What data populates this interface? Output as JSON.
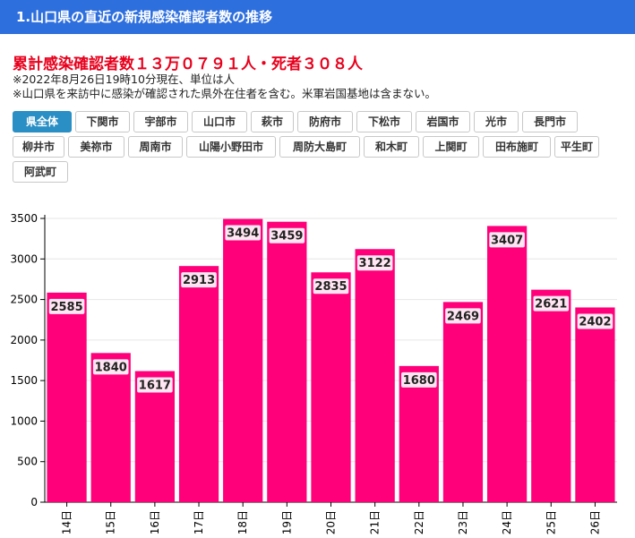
{
  "header": {
    "title": "1.山口県の直近の新規感染確認者数の推移"
  },
  "summary": {
    "headline": "累計感染確認者数１３万０７９１人・死者３０８人",
    "note1": "※2022年8月26日19時10分現在、単位は人",
    "note2": "※山口県を来訪中に感染が確認された県外在住者を含む。米軍岩国基地は含まない。"
  },
  "filters": [
    {
      "label": "県全体",
      "active": true
    },
    {
      "label": "下関市",
      "active": false
    },
    {
      "label": "宇部市",
      "active": false
    },
    {
      "label": "山口市",
      "active": false
    },
    {
      "label": "萩市",
      "active": false
    },
    {
      "label": "防府市",
      "active": false
    },
    {
      "label": "下松市",
      "active": false
    },
    {
      "label": "岩国市",
      "active": false
    },
    {
      "label": "光市",
      "active": false
    },
    {
      "label": "長門市",
      "active": false
    },
    {
      "label": "柳井市",
      "active": false
    },
    {
      "label": "美祢市",
      "active": false
    },
    {
      "label": "周南市",
      "active": false
    },
    {
      "label": "山陽小野田市",
      "active": false
    },
    {
      "label": "周防大島町",
      "active": false
    },
    {
      "label": "和木町",
      "active": false
    },
    {
      "label": "上関町",
      "active": false
    },
    {
      "label": "田布施町",
      "active": false
    },
    {
      "label": "平生町",
      "active": false
    },
    {
      "label": "阿武町",
      "active": false
    }
  ],
  "chart_data": {
    "type": "bar",
    "categories": [
      "14日",
      "15日",
      "16日",
      "17日",
      "18日",
      "19日",
      "20日",
      "21日",
      "22日",
      "23日",
      "24日",
      "25日",
      "26日"
    ],
    "values": [
      2585,
      1840,
      1617,
      2913,
      3494,
      3459,
      2835,
      3122,
      1680,
      2469,
      3407,
      2621,
      2402
    ],
    "ylim": [
      0,
      3500
    ],
    "yticks": [
      0,
      500,
      1000,
      1500,
      2000,
      2500,
      3000,
      3500
    ],
    "bar_color": "#ff007a",
    "grid": true,
    "data_labels": true
  }
}
